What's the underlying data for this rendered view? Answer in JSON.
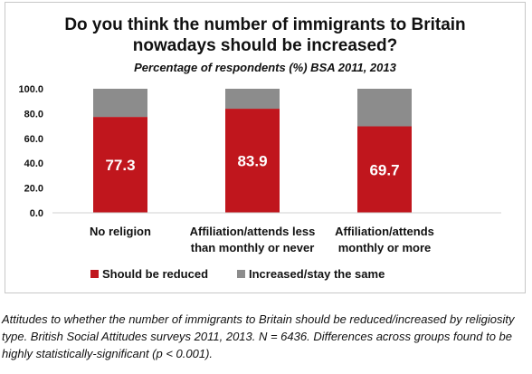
{
  "chart_data": {
    "type": "bar",
    "stacked": true,
    "title_lines": [
      "Do you think the number of immigrants to Britain",
      "nowadays should be increased?"
    ],
    "subtitle": "Percentage of respondents (%) BSA 2011, 2013",
    "categories": [
      [
        "No religion"
      ],
      [
        "Affiliation/attends less",
        "than monthly or never"
      ],
      [
        "Affiliation/attends",
        "monthly or more"
      ]
    ],
    "series": [
      {
        "name": "Should be reduced",
        "color": "#c0161d",
        "values": [
          77.3,
          83.9,
          69.7
        ],
        "labels": [
          "77.3",
          "83.9",
          "69.7"
        ]
      },
      {
        "name": "Increased/stay the same",
        "color": "#8c8c8c",
        "values": [
          22.7,
          16.1,
          30.3
        ]
      }
    ],
    "ylim": [
      0,
      100
    ],
    "yticks": [
      "0.0",
      "20.0",
      "40.0",
      "60.0",
      "80.0",
      "100.0"
    ],
    "grid": false,
    "legend": "bottom"
  },
  "caption": "Attitudes to whether the number of immigrants to Britain should be reduced/increased by religiosity type. British Social Attitudes surveys 2011, 2013. N = 6436. Differences across groups found to be highly statistically-significant (p < 0.001)."
}
